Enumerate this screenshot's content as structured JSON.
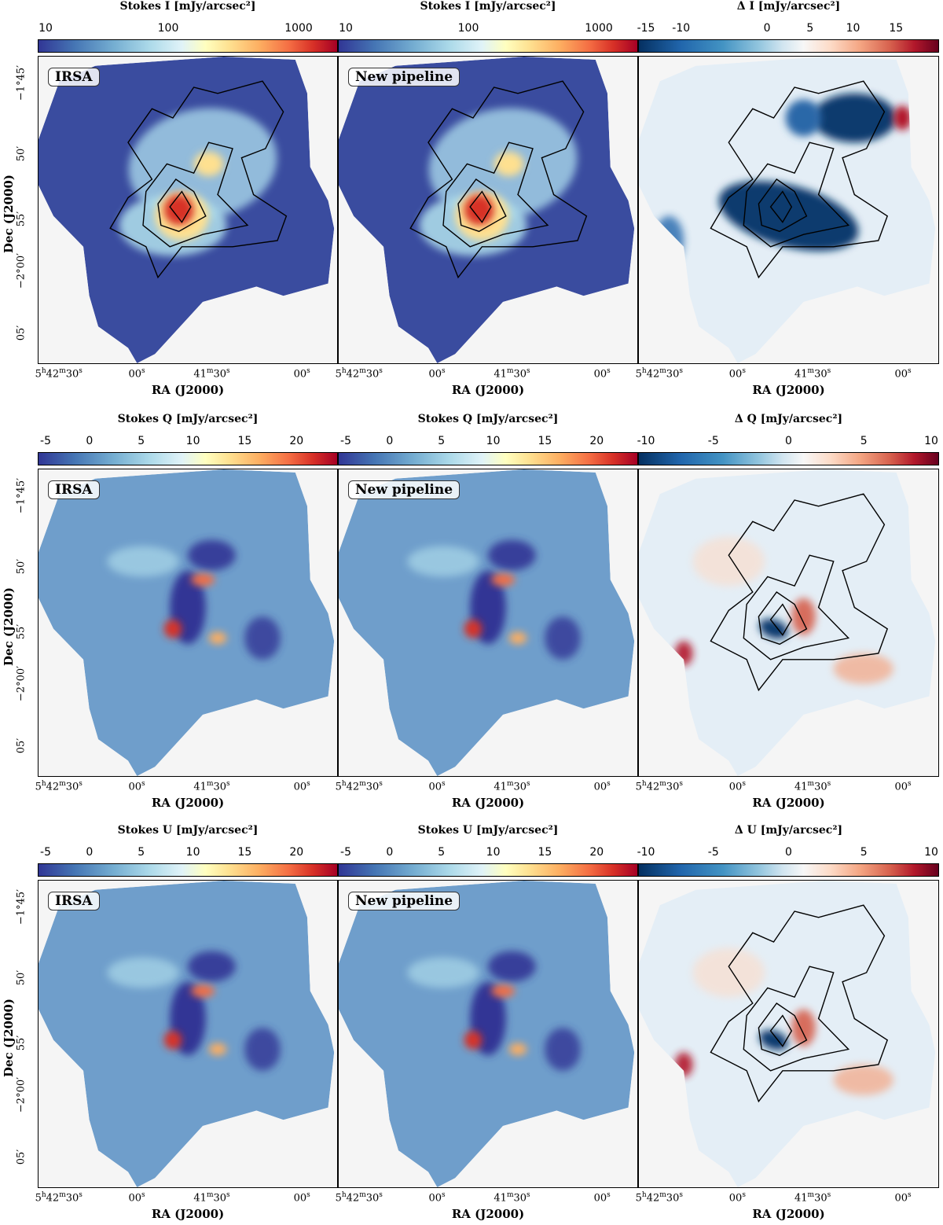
{
  "chart_data": {
    "type": "heatmap",
    "axes": {
      "xlabel": "RA (J2000)",
      "ylabel": "Dec (J2000)",
      "x_ticks": [
        {
          "main": "5",
          "sup1": "h",
          "mid": "42",
          "sup2": "m",
          "end": "30",
          "sup3": "s"
        },
        {
          "main": "",
          "sup1": "",
          "mid": "",
          "sup2": "",
          "end": "00",
          "sup3": "s"
        },
        {
          "main": "",
          "sup1": "",
          "mid": "41",
          "sup2": "m",
          "end": "30",
          "sup3": "s"
        },
        {
          "main": "",
          "sup1": "",
          "mid": "",
          "sup2": "",
          "end": "00",
          "sup3": "s"
        }
      ],
      "y_ticks": [
        "−1°45′",
        "50′",
        "55′",
        "−2°00′",
        "05′"
      ]
    },
    "rows": [
      {
        "panels": [
          {
            "colorbar_label": "Stokes I [mJy/arcsec²]",
            "colorbar_ticks": [
              "10",
              "100",
              "1000"
            ],
            "colormap": "RdYlBu_r",
            "scale": "log",
            "vmin": 10,
            "vmax": 2000,
            "tag": "IRSA",
            "contours": true
          },
          {
            "colorbar_label": "Stokes I [mJy/arcsec²]",
            "colorbar_ticks": [
              "10",
              "100",
              "1000"
            ],
            "colormap": "RdYlBu_r",
            "scale": "log",
            "vmin": 10,
            "vmax": 2000,
            "tag": "New pipeline",
            "contours": true
          },
          {
            "colorbar_label": "Δ I [mJy/arcsec²]",
            "colorbar_ticks": [
              "-15",
              "-10",
              "0",
              "5",
              "10",
              "15"
            ],
            "colormap": "RdBu_r",
            "scale": "linear",
            "vmin": -15,
            "vmax": 20,
            "tag": "",
            "contours": true
          }
        ]
      },
      {
        "panels": [
          {
            "colorbar_label": "Stokes Q [mJy/arcsec²]",
            "colorbar_ticks": [
              "-5",
              "0",
              "5",
              "10",
              "15",
              "20"
            ],
            "colormap": "RdYlBu_r",
            "scale": "linear",
            "vmin": -5,
            "vmax": 24,
            "tag": "IRSA",
            "contours": false
          },
          {
            "colorbar_label": "Stokes Q [mJy/arcsec²]",
            "colorbar_ticks": [
              "-5",
              "0",
              "5",
              "10",
              "15",
              "20"
            ],
            "colormap": "RdYlBu_r",
            "scale": "linear",
            "vmin": -5,
            "vmax": 24,
            "tag": "New pipeline",
            "contours": false
          },
          {
            "colorbar_label": "Δ Q [mJy/arcsec²]",
            "colorbar_ticks": [
              "-10",
              "-5",
              "0",
              "5",
              "10"
            ],
            "colormap": "RdBu_r",
            "scale": "linear",
            "vmin": -10,
            "vmax": 10,
            "tag": "",
            "contours": true
          }
        ]
      },
      {
        "panels": [
          {
            "colorbar_label": "Stokes U [mJy/arcsec²]",
            "colorbar_ticks": [
              "-5",
              "0",
              "5",
              "10",
              "15",
              "20"
            ],
            "colormap": "RdYlBu_r",
            "scale": "linear",
            "vmin": -5,
            "vmax": 24,
            "tag": "IRSA",
            "contours": false
          },
          {
            "colorbar_label": "Stokes U [mJy/arcsec²]",
            "colorbar_ticks": [
              "-5",
              "0",
              "5",
              "10",
              "15",
              "20"
            ],
            "colormap": "RdYlBu_r",
            "scale": "linear",
            "vmin": -5,
            "vmax": 24,
            "tag": "New pipeline",
            "contours": false
          },
          {
            "colorbar_label": "Δ U [mJy/arcsec²]",
            "colorbar_ticks": [
              "-10",
              "-5",
              "0",
              "5",
              "10"
            ],
            "colormap": "RdBu_r",
            "scale": "linear",
            "vmin": -10,
            "vmax": 10,
            "tag": "",
            "contours": true
          }
        ]
      }
    ]
  }
}
